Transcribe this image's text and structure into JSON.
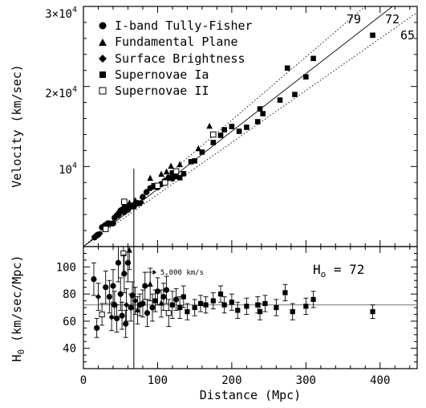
{
  "chart_data": [
    {
      "type": "scatter",
      "panel": "top",
      "xlabel": "",
      "ylabel": "Velocity (km/sec)",
      "xlim": [
        0,
        450
      ],
      "ylim": [
        0,
        30000
      ],
      "y_ticks": [
        {
          "value": 10000,
          "label": "10",
          "exp": "4"
        },
        {
          "value": 20000,
          "label": "2×10",
          "exp": "4"
        },
        {
          "value": 30000,
          "label": "3×10",
          "exp": "4"
        }
      ],
      "legend": [
        {
          "name": "I-band Tully-Fisher",
          "marker": "circle"
        },
        {
          "name": "Fundamental Plane",
          "marker": "triangle"
        },
        {
          "name": "Surface Brightness",
          "marker": "diamond"
        },
        {
          "name": "Supernovae Ia",
          "marker": "square"
        },
        {
          "name": "Supernovae II",
          "marker": "open-square"
        }
      ],
      "lines": [
        {
          "label": "79",
          "slope": 79
        },
        {
          "label": "72",
          "slope": 72
        },
        {
          "label": "65",
          "slope": 65
        }
      ],
      "series": [
        {
          "name": "I-band Tully-Fisher",
          "points": [
            [
              15,
              1150
            ],
            [
              18,
              1400
            ],
            [
              20,
              1500
            ],
            [
              25,
              2400
            ],
            [
              30,
              2700
            ],
            [
              33,
              2900
            ],
            [
              36,
              2850
            ],
            [
              40,
              2900
            ],
            [
              42,
              3600
            ],
            [
              45,
              3900
            ],
            [
              48,
              4200
            ],
            [
              50,
              4500
            ],
            [
              52,
              4600
            ],
            [
              55,
              4300
            ],
            [
              57,
              4800
            ],
            [
              60,
              4600
            ],
            [
              62,
              4900
            ],
            [
              65,
              5100
            ],
            [
              68,
              5000
            ],
            [
              70,
              5300
            ],
            [
              75,
              5400
            ],
            [
              80,
              6200
            ],
            [
              85,
              6800
            ],
            [
              90,
              7300
            ],
            [
              95,
              7500
            ],
            [
              100,
              7400
            ],
            [
              105,
              7800
            ],
            [
              110,
              8200
            ],
            [
              115,
              8600
            ],
            [
              120,
              8500
            ],
            [
              125,
              8800
            ]
          ]
        },
        {
          "name": "Fundamental Plane",
          "points": [
            [
              55,
              5200
            ],
            [
              62,
              5400
            ],
            [
              70,
              5700
            ],
            [
              90,
              8500
            ],
            [
              105,
              9000
            ],
            [
              112,
              9300
            ],
            [
              118,
              10000
            ],
            [
              130,
              10200
            ],
            [
              155,
              12200
            ],
            [
              170,
              15000
            ]
          ]
        },
        {
          "name": "Surface Brightness",
          "points": [
            [
              18,
              1300
            ],
            [
              22,
              1600
            ],
            [
              27,
              2600
            ],
            [
              35,
              2900
            ],
            [
              48,
              3900
            ],
            [
              52,
              4500
            ],
            [
              58,
              4700
            ],
            [
              62,
              5000
            ],
            [
              70,
              5200
            ],
            [
              78,
              5500
            ]
          ]
        },
        {
          "name": "Supernovae Ia",
          "points": [
            [
              95,
              7600
            ],
            [
              120,
              9200
            ],
            [
              130,
              8600
            ],
            [
              135,
              9100
            ],
            [
              145,
              10600
            ],
            [
              150,
              10700
            ],
            [
              160,
              11800
            ],
            [
              175,
              13000
            ],
            [
              185,
              13900
            ],
            [
              190,
              14600
            ],
            [
              200,
              15000
            ],
            [
              210,
              14400
            ],
            [
              220,
              14900
            ],
            [
              235,
              15600
            ],
            [
              238,
              17200
            ],
            [
              242,
              16600
            ],
            [
              265,
              18300
            ],
            [
              275,
              22300
            ],
            [
              285,
              19000
            ],
            [
              300,
              21200
            ],
            [
              310,
              23500
            ],
            [
              390,
              26400
            ]
          ]
        },
        {
          "name": "Supernovae II",
          "points": [
            [
              30,
              2200
            ],
            [
              55,
              5600
            ],
            [
              100,
              7600
            ],
            [
              110,
              8000
            ],
            [
              125,
              9400
            ],
            [
              175,
              14000
            ]
          ]
        }
      ]
    },
    {
      "type": "scatter",
      "panel": "bottom",
      "xlabel": "Distance (Mpc)",
      "ylabel": "H",
      "ylabel_sub": "0",
      "ylabel_rest": " (km/sec/Mpc)",
      "xlim": [
        0,
        450
      ],
      "ylim": [
        25,
        115
      ],
      "x_ticks": [
        0,
        100,
        200,
        300,
        400
      ],
      "y_ticks": [
        40,
        60,
        80,
        100
      ],
      "reference_line": 72,
      "annotation": {
        "H_label": "H",
        "H_sub": "o",
        "H_rest": " = 72",
        "arrow_note": "> 5,000 km/s",
        "cutoff_x": 68
      },
      "points": [
        {
          "x": 14,
          "y": 91,
          "e": 12,
          "m": "circle"
        },
        {
          "x": 18,
          "y": 55,
          "e": 7,
          "m": "circle"
        },
        {
          "x": 20,
          "y": 78,
          "e": 10,
          "m": "diamond"
        },
        {
          "x": 25,
          "y": 65,
          "e": 8,
          "m": "open-square"
        },
        {
          "x": 30,
          "y": 85,
          "e": 12,
          "m": "circle"
        },
        {
          "x": 35,
          "y": 78,
          "e": 12,
          "m": "circle"
        },
        {
          "x": 38,
          "y": 63,
          "e": 10,
          "m": "diamond"
        },
        {
          "x": 40,
          "y": 86,
          "e": 12,
          "m": "circle"
        },
        {
          "x": 42,
          "y": 72,
          "e": 10,
          "m": "circle"
        },
        {
          "x": 45,
          "y": 62,
          "e": 10,
          "m": "circle"
        },
        {
          "x": 47,
          "y": 103,
          "e": 14,
          "m": "circle"
        },
        {
          "x": 50,
          "y": 80,
          "e": 12,
          "m": "circle"
        },
        {
          "x": 52,
          "y": 64,
          "e": 10,
          "m": "circle"
        },
        {
          "x": 54,
          "y": 110,
          "e": 16,
          "m": "open-square"
        },
        {
          "x": 55,
          "y": 95,
          "e": 14,
          "m": "circle"
        },
        {
          "x": 57,
          "y": 58,
          "e": 10,
          "m": "circle"
        },
        {
          "x": 58,
          "y": 72,
          "e": 12,
          "m": "diamond"
        },
        {
          "x": 60,
          "y": 103,
          "e": 14,
          "m": "circle"
        },
        {
          "x": 62,
          "y": 112,
          "e": 14,
          "m": "triangle"
        },
        {
          "x": 64,
          "y": 70,
          "e": 10,
          "m": "circle"
        },
        {
          "x": 66,
          "y": 79,
          "e": 10,
          "m": "circle"
        },
        {
          "x": 70,
          "y": 75,
          "e": 10,
          "m": "diamond"
        },
        {
          "x": 73,
          "y": 68,
          "e": 10,
          "m": "triangle"
        },
        {
          "x": 76,
          "y": 72,
          "e": 8,
          "m": "circle"
        },
        {
          "x": 80,
          "y": 73,
          "e": 10,
          "m": "circle"
        },
        {
          "x": 83,
          "y": 86,
          "e": 10,
          "m": "circle"
        },
        {
          "x": 86,
          "y": 66,
          "e": 10,
          "m": "circle"
        },
        {
          "x": 90,
          "y": 87,
          "e": 12,
          "m": "triangle"
        },
        {
          "x": 93,
          "y": 70,
          "e": 10,
          "m": "circle"
        },
        {
          "x": 97,
          "y": 75,
          "e": 8,
          "m": "square"
        },
        {
          "x": 100,
          "y": 82,
          "e": 10,
          "m": "circle"
        },
        {
          "x": 105,
          "y": 73,
          "e": 10,
          "m": "triangle"
        },
        {
          "x": 108,
          "y": 78,
          "e": 10,
          "m": "circle"
        },
        {
          "x": 112,
          "y": 83,
          "e": 10,
          "m": "circle"
        },
        {
          "x": 115,
          "y": 66,
          "e": 10,
          "m": "open-square"
        },
        {
          "x": 120,
          "y": 72,
          "e": 10,
          "m": "square"
        },
        {
          "x": 125,
          "y": 76,
          "e": 8,
          "m": "circle"
        },
        {
          "x": 130,
          "y": 70,
          "e": 8,
          "m": "square"
        },
        {
          "x": 135,
          "y": 78,
          "e": 8,
          "m": "square"
        },
        {
          "x": 140,
          "y": 67,
          "e": 6,
          "m": "square"
        },
        {
          "x": 150,
          "y": 70,
          "e": 6,
          "m": "square"
        },
        {
          "x": 158,
          "y": 73,
          "e": 6,
          "m": "square"
        },
        {
          "x": 165,
          "y": 72,
          "e": 6,
          "m": "square"
        },
        {
          "x": 175,
          "y": 75,
          "e": 6,
          "m": "square"
        },
        {
          "x": 185,
          "y": 80,
          "e": 6,
          "m": "square"
        },
        {
          "x": 190,
          "y": 72,
          "e": 6,
          "m": "square"
        },
        {
          "x": 200,
          "y": 74,
          "e": 6,
          "m": "square"
        },
        {
          "x": 208,
          "y": 68,
          "e": 6,
          "m": "square"
        },
        {
          "x": 220,
          "y": 71,
          "e": 6,
          "m": "square"
        },
        {
          "x": 235,
          "y": 72,
          "e": 6,
          "m": "square"
        },
        {
          "x": 238,
          "y": 67,
          "e": 6,
          "m": "square"
        },
        {
          "x": 245,
          "y": 73,
          "e": 6,
          "m": "square"
        },
        {
          "x": 260,
          "y": 70,
          "e": 6,
          "m": "square"
        },
        {
          "x": 272,
          "y": 81,
          "e": 6,
          "m": "square"
        },
        {
          "x": 282,
          "y": 67,
          "e": 6,
          "m": "square"
        },
        {
          "x": 300,
          "y": 71,
          "e": 6,
          "m": "square"
        },
        {
          "x": 310,
          "y": 76,
          "e": 6,
          "m": "square"
        },
        {
          "x": 390,
          "y": 67,
          "e": 5,
          "m": "square"
        }
      ]
    }
  ]
}
